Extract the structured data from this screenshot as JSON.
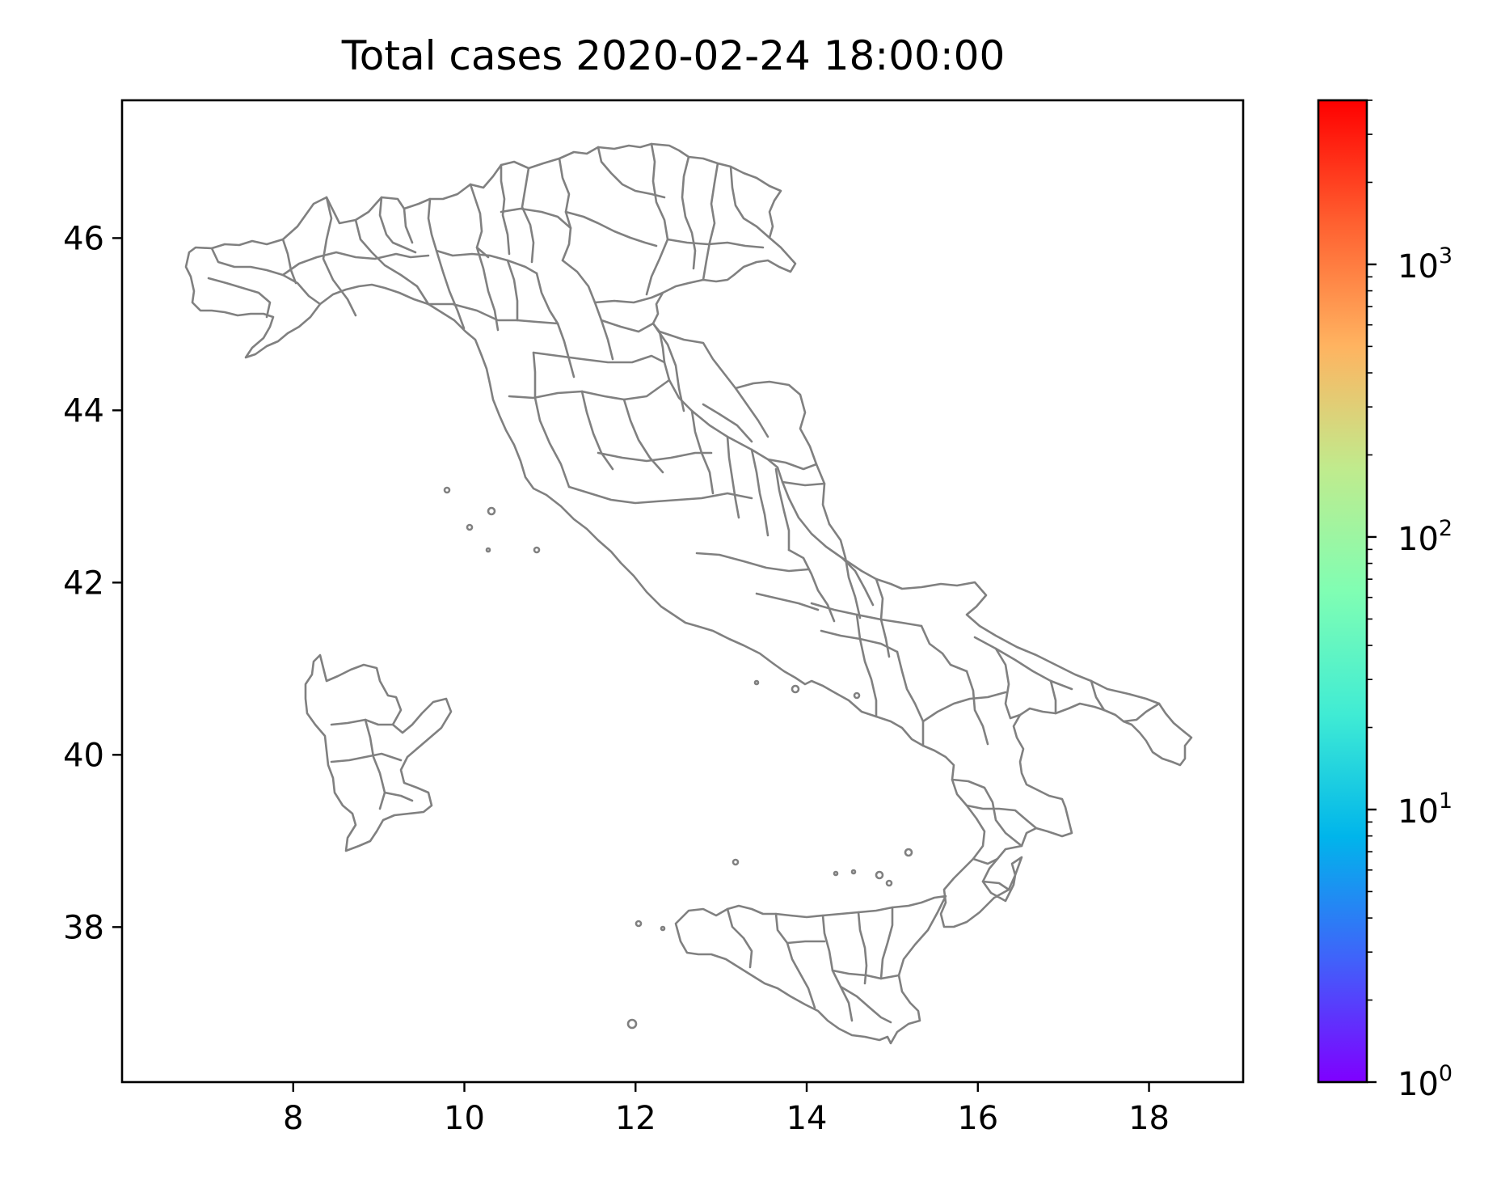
{
  "chart_data": {
    "type": "choropleth-map",
    "title": "Total cases 2020-02-24 18:00:00",
    "xlim": [
      6.0,
      19.1
    ],
    "ylim": [
      36.2,
      47.6
    ],
    "xticks": [
      8,
      10,
      12,
      14,
      16,
      18
    ],
    "yticks": [
      38,
      40,
      42,
      44,
      46
    ],
    "xlabel": "",
    "ylabel": "",
    "boundary_color": "#808080",
    "fill_color": "#ffffff",
    "grid": false,
    "colorbar": {
      "scale": "log",
      "colormap": "rainbow",
      "range": [
        1,
        4000
      ],
      "ticks": [
        {
          "value": 1,
          "base": "10",
          "exp": "0"
        },
        {
          "value": 10,
          "base": "10",
          "exp": "1"
        },
        {
          "value": 100,
          "base": "10",
          "exp": "2"
        },
        {
          "value": 1000,
          "base": "10",
          "exp": "3"
        }
      ],
      "colors": [
        "#7f00ff",
        "#4062fa",
        "#00b5eb",
        "#40ecd4",
        "#80feb3",
        "#c0eb8d",
        "#ffb360",
        "#ff6030",
        "#ff0000"
      ]
    }
  }
}
